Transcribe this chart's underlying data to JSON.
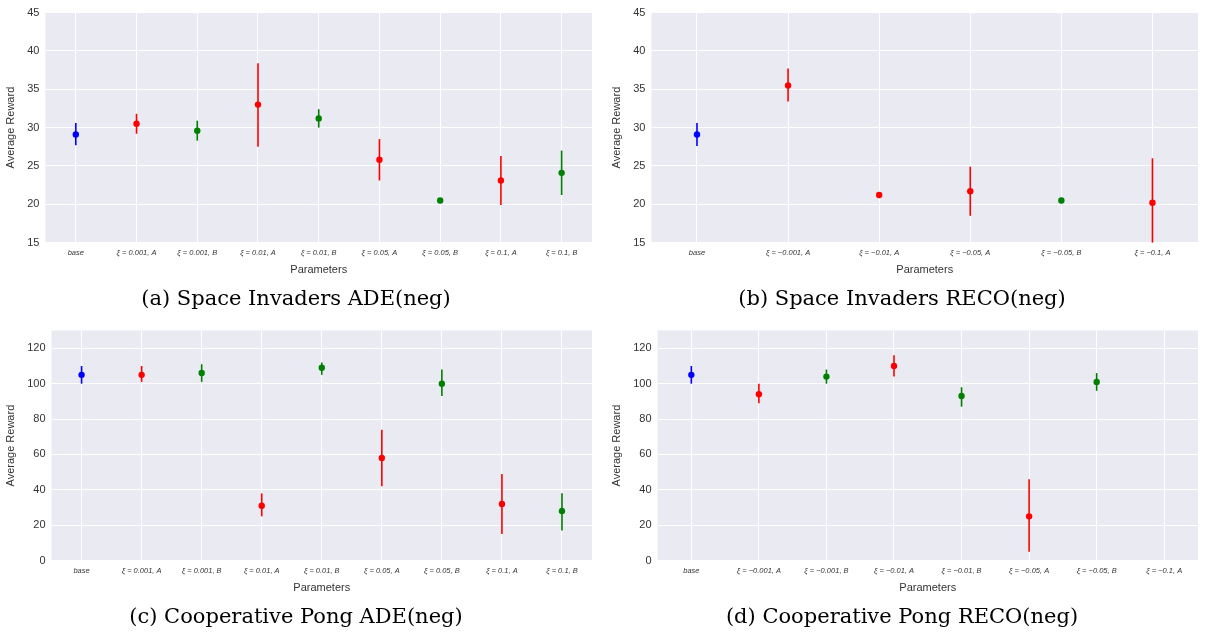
{
  "chart_data": [
    {
      "type": "scatter",
      "title": "(a) Space Invaders ADE(neg)",
      "xlabel": "Parameters",
      "ylabel": "Average Reward",
      "marker": "circle",
      "grid": true,
      "legend": false,
      "categories": [
        "base",
        "ξ = 0.001, A",
        "ξ = 0.001, B",
        "ξ = 0.01, A",
        "ξ = 0.01, B",
        "ξ = 0.05, A",
        "ξ = 0.05, B",
        "ξ = 0.1, A",
        "ξ = 0.1, B"
      ],
      "values": [
        29.1,
        30.5,
        29.6,
        33.0,
        31.2,
        25.8,
        20.5,
        23.1,
        24.1
      ],
      "colors": [
        "#0000ff",
        "#ff0000",
        "#008000",
        "#ff0000",
        "#008000",
        "#ff0000",
        "#008000",
        "#ff0000",
        "#008000"
      ],
      "errors": [
        [
          27.7,
          30.6
        ],
        [
          29.2,
          31.8
        ],
        [
          28.3,
          30.9
        ],
        [
          27.5,
          38.4
        ],
        [
          30.0,
          32.4
        ],
        [
          23.1,
          28.5
        ],
        null,
        [
          19.9,
          26.3
        ],
        [
          21.2,
          27.0
        ]
      ],
      "ylim": [
        15,
        45
      ],
      "yticks": [
        15,
        20,
        25,
        30,
        35,
        40,
        45
      ]
    },
    {
      "type": "scatter",
      "title": "(b) Space Invaders RECO(neg)",
      "xlabel": "Parameters",
      "ylabel": "Average Reward",
      "marker": "circle",
      "grid": true,
      "legend": false,
      "categories": [
        "base",
        "ξ = −0.001, A",
        "ξ = −0.01, A",
        "ξ = −0.05, A",
        "ξ = −0.05, B",
        "ξ = −0.1, A"
      ],
      "values": [
        29.1,
        35.5,
        21.2,
        21.7,
        20.5,
        20.2
      ],
      "colors": [
        "#0000ff",
        "#ff0000",
        "#ff0000",
        "#ff0000",
        "#008000",
        "#ff0000"
      ],
      "errors": [
        [
          27.6,
          30.6
        ],
        [
          33.4,
          37.7
        ],
        null,
        [
          18.5,
          24.9
        ],
        null,
        [
          15,
          26.0
        ]
      ],
      "ylim": [
        15,
        45
      ],
      "yticks": [
        15,
        20,
        25,
        30,
        35,
        40,
        45
      ]
    },
    {
      "type": "scatter",
      "title": "(c) Cooperative Pong ADE(neg)",
      "xlabel": "Parameters",
      "ylabel": "Average Reward",
      "marker": "circle",
      "grid": true,
      "legend": false,
      "categories": [
        "base",
        "ξ = 0.001, A",
        "ξ = 0.001, B",
        "ξ = 0.01, A",
        "ξ = 0.01, B",
        "ξ = 0.05, A",
        "ξ = 0.05, B",
        "ξ = 0.1, A",
        "ξ = 0.1, B"
      ],
      "values": [
        105,
        105,
        106,
        31,
        109,
        58,
        100,
        32,
        28
      ],
      "colors": [
        "#0000ff",
        "#ff0000",
        "#008000",
        "#ff0000",
        "#008000",
        "#ff0000",
        "#008000",
        "#ff0000",
        "#008000"
      ],
      "errors": [
        [
          100,
          110
        ],
        [
          101,
          110
        ],
        [
          101,
          111
        ],
        [
          25,
          38
        ],
        [
          105,
          112
        ],
        [
          42,
          74
        ],
        [
          93,
          108
        ],
        [
          15,
          49
        ],
        [
          17,
          38
        ]
      ],
      "ylim": [
        0,
        130
      ],
      "yticks": [
        0,
        20,
        40,
        60,
        80,
        100,
        120
      ]
    },
    {
      "type": "scatter",
      "title": "(d) Cooperative Pong RECO(neg)",
      "xlabel": "Parameters",
      "ylabel": "Average Reward",
      "marker": "circle",
      "grid": true,
      "legend": false,
      "categories": [
        "base",
        "ξ = −0.001, A",
        "ξ = −0.001, B",
        "ξ = −0.01, A",
        "ξ = −0.01, B",
        "ξ = −0.05, A",
        "ξ = −0.05, B",
        "ξ = −0.1, A"
      ],
      "values": [
        105,
        94,
        104,
        110,
        93,
        25,
        101,
        null
      ],
      "colors": [
        "#0000ff",
        "#ff0000",
        "#008000",
        "#ff0000",
        "#008000",
        "#ff0000",
        "#008000",
        "#ff0000"
      ],
      "errors": [
        [
          100,
          110
        ],
        [
          89,
          100
        ],
        [
          100,
          108
        ],
        [
          104,
          116
        ],
        [
          87,
          98
        ],
        [
          5,
          46
        ],
        [
          96,
          106
        ],
        null
      ],
      "ylim": [
        0,
        130
      ],
      "yticks": [
        0,
        20,
        40,
        60,
        80,
        100,
        120
      ]
    }
  ]
}
